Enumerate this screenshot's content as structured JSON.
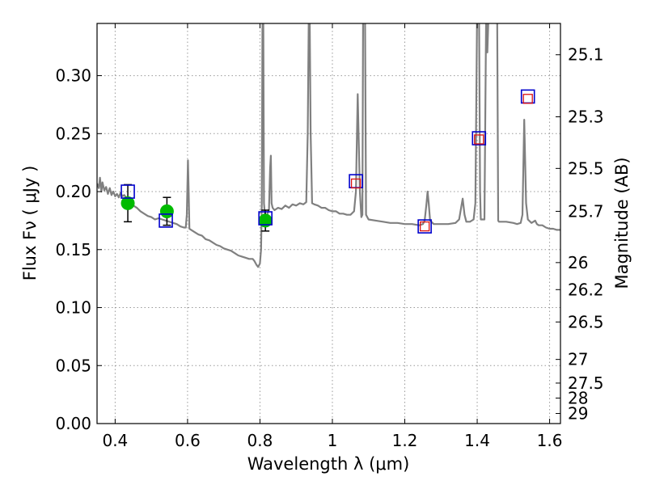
{
  "chart_data": {
    "type": "line",
    "xlabel": "Wavelength  λ (μm)",
    "ylabel": "Flux  Fν  ( μJy )",
    "y2label": "Magnitude (AB)",
    "xlim": [
      0.35,
      1.63
    ],
    "ylim": [
      0.0,
      0.345
    ],
    "grid": true,
    "x_ticks": [
      0.4,
      0.6,
      0.8,
      1.0,
      1.2,
      1.4,
      1.6
    ],
    "x_tick_labels": [
      "0.4",
      "0.6",
      "0.8",
      "1",
      "1.2",
      "1.4",
      "1.6"
    ],
    "y_ticks": [
      0.0,
      0.05,
      0.1,
      0.15,
      0.2,
      0.25,
      0.3
    ],
    "y_tick_labels": [
      "0.00",
      "0.05",
      "0.10",
      "0.15",
      "0.20",
      "0.25",
      "0.30"
    ],
    "y2_ticks": [
      {
        "label": "25.1",
        "flux": 0.318
      },
      {
        "label": "25.3",
        "flux": 0.2645
      },
      {
        "label": "25.5",
        "flux": 0.22
      },
      {
        "label": "25.7",
        "flux": 0.183
      },
      {
        "label": "26",
        "flux": 0.1388
      },
      {
        "label": "26.2",
        "flux": 0.1155
      },
      {
        "label": "26.5",
        "flux": 0.0876
      },
      {
        "label": "27",
        "flux": 0.0553
      },
      {
        "label": "27.5",
        "flux": 0.0349
      },
      {
        "label": "28",
        "flux": 0.022
      },
      {
        "label": "29",
        "flux": 0.0087
      }
    ],
    "colors": {
      "sed": "#808080",
      "observed": "#00bb00",
      "model_outer": "#0000cc",
      "model_inner": "#dd1111",
      "errorbar": "#000000",
      "grid": "#999999"
    },
    "series": [
      {
        "kind": "sed",
        "points": [
          [
            0.35,
            0.207
          ],
          [
            0.355,
            0.203
          ],
          [
            0.358,
            0.212
          ],
          [
            0.362,
            0.2
          ],
          [
            0.365,
            0.208
          ],
          [
            0.37,
            0.201
          ],
          [
            0.375,
            0.204
          ],
          [
            0.38,
            0.198
          ],
          [
            0.385,
            0.203
          ],
          [
            0.39,
            0.197
          ],
          [
            0.395,
            0.2
          ],
          [
            0.4,
            0.196
          ],
          [
            0.405,
            0.198
          ],
          [
            0.41,
            0.195
          ],
          [
            0.415,
            0.199
          ],
          [
            0.42,
            0.196
          ],
          [
            0.425,
            0.197
          ],
          [
            0.43,
            0.195
          ],
          [
            0.435,
            0.194
          ],
          [
            0.44,
            0.193
          ],
          [
            0.445,
            0.19
          ],
          [
            0.45,
            0.188
          ],
          [
            0.46,
            0.186
          ],
          [
            0.47,
            0.183
          ],
          [
            0.48,
            0.181
          ],
          [
            0.49,
            0.179
          ],
          [
            0.5,
            0.178
          ],
          [
            0.51,
            0.176
          ],
          [
            0.52,
            0.177
          ],
          [
            0.53,
            0.176
          ],
          [
            0.54,
            0.175
          ],
          [
            0.55,
            0.174
          ],
          [
            0.56,
            0.173
          ],
          [
            0.57,
            0.172
          ],
          [
            0.58,
            0.17
          ],
          [
            0.59,
            0.169
          ],
          [
            0.595,
            0.169
          ],
          [
            0.598,
            0.18
          ],
          [
            0.601,
            0.227
          ],
          [
            0.603,
            0.2
          ],
          [
            0.605,
            0.168
          ],
          [
            0.61,
            0.167
          ],
          [
            0.62,
            0.165
          ],
          [
            0.63,
            0.163
          ],
          [
            0.64,
            0.162
          ],
          [
            0.65,
            0.159
          ],
          [
            0.66,
            0.158
          ],
          [
            0.67,
            0.156
          ],
          [
            0.68,
            0.154
          ],
          [
            0.69,
            0.153
          ],
          [
            0.7,
            0.151
          ],
          [
            0.71,
            0.15
          ],
          [
            0.72,
            0.149
          ],
          [
            0.73,
            0.147
          ],
          [
            0.74,
            0.145
          ],
          [
            0.75,
            0.144
          ],
          [
            0.76,
            0.143
          ],
          [
            0.77,
            0.142
          ],
          [
            0.78,
            0.142
          ],
          [
            0.785,
            0.14
          ],
          [
            0.79,
            0.137
          ],
          [
            0.795,
            0.135
          ],
          [
            0.8,
            0.138
          ],
          [
            0.803,
            0.15
          ],
          [
            0.805,
            0.19
          ],
          [
            0.807,
            0.36
          ],
          [
            0.809,
            0.36
          ],
          [
            0.811,
            0.19
          ],
          [
            0.815,
            0.175
          ],
          [
            0.82,
            0.18
          ],
          [
            0.825,
            0.185
          ],
          [
            0.828,
            0.22
          ],
          [
            0.83,
            0.231
          ],
          [
            0.832,
            0.19
          ],
          [
            0.835,
            0.186
          ],
          [
            0.84,
            0.184
          ],
          [
            0.85,
            0.186
          ],
          [
            0.86,
            0.185
          ],
          [
            0.87,
            0.188
          ],
          [
            0.88,
            0.186
          ],
          [
            0.89,
            0.189
          ],
          [
            0.9,
            0.188
          ],
          [
            0.91,
            0.19
          ],
          [
            0.92,
            0.189
          ],
          [
            0.928,
            0.191
          ],
          [
            0.932,
            0.25
          ],
          [
            0.935,
            0.36
          ],
          [
            0.937,
            0.36
          ],
          [
            0.94,
            0.25
          ],
          [
            0.944,
            0.19
          ],
          [
            0.95,
            0.189
          ],
          [
            0.96,
            0.188
          ],
          [
            0.97,
            0.186
          ],
          [
            0.98,
            0.186
          ],
          [
            0.99,
            0.184
          ],
          [
            1.0,
            0.183
          ],
          [
            1.01,
            0.183
          ],
          [
            1.02,
            0.181
          ],
          [
            1.03,
            0.181
          ],
          [
            1.04,
            0.18
          ],
          [
            1.05,
            0.18
          ],
          [
            1.06,
            0.183
          ],
          [
            1.065,
            0.2
          ],
          [
            1.068,
            0.25
          ],
          [
            1.07,
            0.284
          ],
          [
            1.073,
            0.24
          ],
          [
            1.076,
            0.2
          ],
          [
            1.08,
            0.178
          ],
          [
            1.083,
            0.18
          ],
          [
            1.085,
            0.36
          ],
          [
            1.09,
            0.36
          ],
          [
            1.093,
            0.18
          ],
          [
            1.1,
            0.176
          ],
          [
            1.12,
            0.175
          ],
          [
            1.14,
            0.174
          ],
          [
            1.16,
            0.173
          ],
          [
            1.18,
            0.173
          ],
          [
            1.2,
            0.172
          ],
          [
            1.22,
            0.172
          ],
          [
            1.24,
            0.171
          ],
          [
            1.25,
            0.172
          ],
          [
            1.255,
            0.175
          ],
          [
            1.26,
            0.19
          ],
          [
            1.263,
            0.2
          ],
          [
            1.266,
            0.19
          ],
          [
            1.27,
            0.175
          ],
          [
            1.28,
            0.172
          ],
          [
            1.3,
            0.172
          ],
          [
            1.32,
            0.172
          ],
          [
            1.34,
            0.173
          ],
          [
            1.35,
            0.176
          ],
          [
            1.355,
            0.185
          ],
          [
            1.36,
            0.194
          ],
          [
            1.365,
            0.18
          ],
          [
            1.37,
            0.174
          ],
          [
            1.38,
            0.174
          ],
          [
            1.39,
            0.176
          ],
          [
            1.395,
            0.19
          ],
          [
            1.4,
            0.36
          ],
          [
            1.405,
            0.36
          ],
          [
            1.408,
            0.2
          ],
          [
            1.41,
            0.176
          ],
          [
            1.42,
            0.176
          ],
          [
            1.425,
            0.36
          ],
          [
            1.428,
            0.32
          ],
          [
            1.432,
            0.36
          ],
          [
            1.438,
            0.36
          ],
          [
            1.44,
            0.36
          ],
          [
            1.45,
            0.36
          ],
          [
            1.455,
            0.36
          ],
          [
            1.458,
            0.175
          ],
          [
            1.46,
            0.174
          ],
          [
            1.48,
            0.174
          ],
          [
            1.5,
            0.173
          ],
          [
            1.51,
            0.172
          ],
          [
            1.52,
            0.173
          ],
          [
            1.525,
            0.18
          ],
          [
            1.53,
            0.262
          ],
          [
            1.535,
            0.19
          ],
          [
            1.54,
            0.176
          ],
          [
            1.55,
            0.173
          ],
          [
            1.56,
            0.175
          ],
          [
            1.565,
            0.172
          ],
          [
            1.57,
            0.171
          ],
          [
            1.58,
            0.171
          ],
          [
            1.59,
            0.169
          ],
          [
            1.6,
            0.168
          ],
          [
            1.61,
            0.168
          ],
          [
            1.62,
            0.167
          ],
          [
            1.63,
            0.167
          ]
        ]
      },
      {
        "kind": "observed",
        "points": [
          {
            "x": 0.435,
            "y": 0.19,
            "err": 0.016
          },
          {
            "x": 0.543,
            "y": 0.183,
            "err": 0.012
          },
          {
            "x": 0.815,
            "y": 0.175,
            "err": 0.009
          }
        ]
      },
      {
        "kind": "model-outer",
        "points": [
          {
            "x": 0.435,
            "y": 0.2
          },
          {
            "x": 0.54,
            "y": 0.175
          },
          {
            "x": 0.815,
            "y": 0.177
          },
          {
            "x": 1.065,
            "y": 0.209
          },
          {
            "x": 1.255,
            "y": 0.17
          },
          {
            "x": 1.405,
            "y": 0.246
          },
          {
            "x": 1.54,
            "y": 0.282
          }
        ]
      },
      {
        "kind": "model-inner",
        "points": [
          {
            "x": 1.065,
            "y": 0.207
          },
          {
            "x": 1.255,
            "y": 0.17
          },
          {
            "x": 1.405,
            "y": 0.245
          },
          {
            "x": 1.54,
            "y": 0.28
          }
        ]
      }
    ]
  }
}
